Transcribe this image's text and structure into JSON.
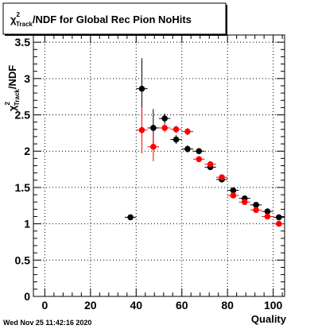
{
  "title_box": {
    "prefix": "χ",
    "sup": "2",
    "sub": "Track",
    "rest": "/NDF for Global Rec Pion NoHits"
  },
  "ylabel": {
    "prefix": "χ",
    "sup": "2",
    "sub": "Track",
    "rest": "/NDF"
  },
  "footer_timestamp": "Wed Nov 25 11:42:16 2020",
  "chart_data": {
    "type": "scatter",
    "title": "χ2Track/NDF for Global Rec Pion NoHits",
    "xlabel": "Quality",
    "ylabel": "χ2Track/NDF",
    "xlim": [
      -5,
      105
    ],
    "ylim": [
      0,
      3.6
    ],
    "xticks": [
      0,
      20,
      40,
      60,
      80,
      100
    ],
    "xtick_labels": [
      "0",
      "20",
      "40",
      "60",
      "80",
      "100"
    ],
    "yticks": [
      0,
      0.5,
      1,
      1.5,
      2,
      2.5,
      3,
      3.5
    ],
    "ytick_labels": [
      "0",
      "0.5",
      "1",
      "1.5",
      "2",
      "2.5",
      "3",
      "3.5"
    ],
    "grid": true,
    "series": [
      {
        "color": "#000000",
        "x": [
          37.5,
          42.5,
          47.5,
          52.5,
          57.5,
          62.5,
          67.5,
          72.5,
          77.5,
          82.5,
          87.5,
          92.5,
          97.5,
          102.5
        ],
        "y": [
          1.09,
          2.86,
          2.32,
          2.45,
          2.16,
          2.03,
          2.0,
          1.78,
          1.61,
          1.46,
          1.35,
          1.26,
          1.17,
          1.09
        ],
        "yerr": [
          0.0,
          0.42,
          0.26,
          0.07,
          0.06,
          0.05,
          0.04,
          0.04,
          0.03,
          0.03,
          0.03,
          0.03,
          0.03,
          0.03
        ]
      },
      {
        "color": "#ff0000",
        "x": [
          42.5,
          47.5,
          52.5,
          57.5,
          62.5,
          67.5,
          72.5,
          77.5,
          82.5,
          87.5,
          92.5,
          97.5,
          102.5
        ],
        "y": [
          2.29,
          2.06,
          2.32,
          2.3,
          2.27,
          1.89,
          1.82,
          1.64,
          1.39,
          1.3,
          1.19,
          1.1,
          1.0
        ],
        "yerr": [
          0.32,
          0.2,
          0.06,
          0.05,
          0.05,
          0.04,
          0.04,
          0.04,
          0.03,
          0.03,
          0.03,
          0.03,
          0.03
        ]
      }
    ]
  }
}
